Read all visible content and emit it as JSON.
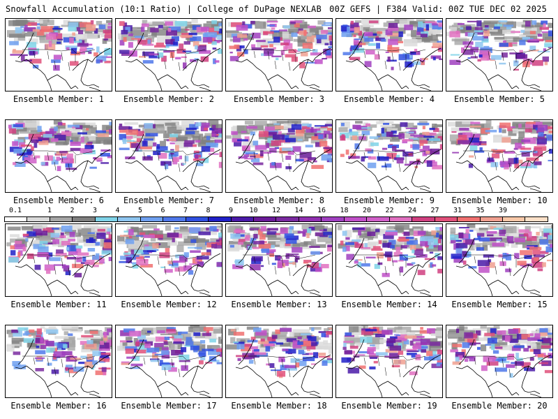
{
  "header": {
    "left_title": "Snowfall Accumulation (10:1 Ratio) | College of DuPage NEXLAB",
    "right_title": "00Z GEFS | F384 Valid: 00Z TUE DEC 02 2025"
  },
  "members": [
    {
      "label": "Ensemble Member: 1"
    },
    {
      "label": "Ensemble Member: 2"
    },
    {
      "label": "Ensemble Member: 3"
    },
    {
      "label": "Ensemble Member: 4"
    },
    {
      "label": "Ensemble Member: 5"
    },
    {
      "label": "Ensemble Member: 6"
    },
    {
      "label": "Ensemble Member: 7"
    },
    {
      "label": "Ensemble Member: 8"
    },
    {
      "label": "Ensemble Member: 9"
    },
    {
      "label": "Ensemble Member: 10"
    },
    {
      "label": "Ensemble Member: 11"
    },
    {
      "label": "Ensemble Member: 12"
    },
    {
      "label": "Ensemble Member: 13"
    },
    {
      "label": "Ensemble Member: 14"
    },
    {
      "label": "Ensemble Member: 15"
    },
    {
      "label": "Ensemble Member: 16"
    },
    {
      "label": "Ensemble Member: 17"
    },
    {
      "label": "Ensemble Member: 18"
    },
    {
      "label": "Ensemble Member: 19"
    },
    {
      "label": "Ensemble Member: 20"
    }
  ],
  "colorbar": {
    "labels": [
      "0.1",
      "1",
      "2",
      "3",
      "4",
      "5",
      "6",
      "7",
      "8",
      "9",
      "10",
      "12",
      "14",
      "16",
      "18",
      "20",
      "22",
      "24",
      "27",
      "31",
      "35",
      "39"
    ],
    "colors": [
      "#ffffff",
      "#d9d9d9",
      "#a6a6a6",
      "#7f7f7f",
      "#7fd3e8",
      "#8ec5f0",
      "#6fa0f0",
      "#4f78ea",
      "#3050e0",
      "#2020c8",
      "#4a1aa8",
      "#6a1a98",
      "#7a2aa0",
      "#9030b0",
      "#a040c0",
      "#c050c8",
      "#d060c8",
      "#e070c0",
      "#d04080",
      "#e0507a",
      "#f07070",
      "#f0a090",
      "#f8c8a8",
      "#fce0c8"
    ]
  }
}
